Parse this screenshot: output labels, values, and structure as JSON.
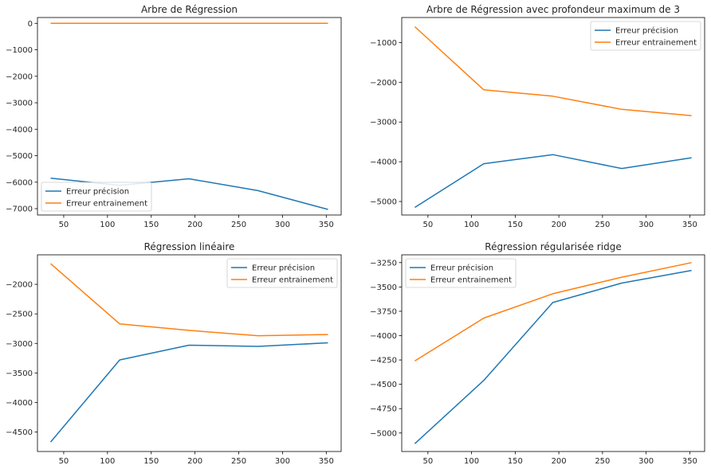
{
  "colors": {
    "precision": "#1f77b4",
    "train": "#ff7f0e"
  },
  "chart_data": [
    {
      "type": "line",
      "title": "Arbre de Régression",
      "x": [
        35,
        114,
        193,
        272,
        352
      ],
      "series": [
        {
          "name": "Erreur précision",
          "values": [
            -5850,
            -6120,
            -5870,
            -6320,
            -7030
          ]
        },
        {
          "name": "Erreur entrainement",
          "values": [
            0,
            0,
            0,
            0,
            0
          ]
        }
      ],
      "xlim": [
        20,
        367
      ],
      "ylim": [
        -7240,
        220
      ],
      "xticks": [
        50,
        100,
        150,
        200,
        250,
        300,
        350
      ],
      "yticks": [
        0,
        -1000,
        -2000,
        -3000,
        -4000,
        -5000,
        -6000,
        -7000
      ],
      "legend": "lower-left",
      "grid": false
    },
    {
      "type": "line",
      "title": "Arbre de Régression avec profondeur maximum de 3",
      "x": [
        35,
        114,
        193,
        272,
        352
      ],
      "series": [
        {
          "name": "Erreur précision",
          "values": [
            -5150,
            -4050,
            -3820,
            -4170,
            -3900
          ]
        },
        {
          "name": "Erreur entrainement",
          "values": [
            -600,
            -2190,
            -2350,
            -2680,
            -2840
          ]
        }
      ],
      "xlim": [
        20,
        367
      ],
      "ylim": [
        -5340,
        -370
      ],
      "xticks": [
        50,
        100,
        150,
        200,
        250,
        300,
        350
      ],
      "yticks": [
        -1000,
        -2000,
        -3000,
        -4000,
        -5000
      ],
      "legend": "upper-right",
      "grid": false
    },
    {
      "type": "line",
      "title": "Régression linéaire",
      "x": [
        35,
        114,
        193,
        272,
        352
      ],
      "series": [
        {
          "name": "Erreur précision",
          "values": [
            -4670,
            -3280,
            -3030,
            -3050,
            -2990
          ]
        },
        {
          "name": "Erreur entrainement",
          "values": [
            -1650,
            -2670,
            -2780,
            -2870,
            -2850
          ]
        }
      ],
      "xlim": [
        20,
        367
      ],
      "ylim": [
        -4830,
        -1500
      ],
      "xticks": [
        50,
        100,
        150,
        200,
        250,
        300,
        350
      ],
      "yticks": [
        -2000,
        -2500,
        -3000,
        -3500,
        -4000,
        -4500
      ],
      "legend": "upper-right",
      "grid": false
    },
    {
      "type": "line",
      "title": "Régression régularisée ridge",
      "x": [
        35,
        114,
        193,
        272,
        352
      ],
      "series": [
        {
          "name": "Erreur précision",
          "values": [
            -5110,
            -4460,
            -3660,
            -3460,
            -3330
          ]
        },
        {
          "name": "Erreur entrainement",
          "values": [
            -4260,
            -3820,
            -3570,
            -3400,
            -3250
          ]
        }
      ],
      "xlim": [
        20,
        367
      ],
      "ylim": [
        -5190,
        -3170
      ],
      "xticks": [
        50,
        100,
        150,
        200,
        250,
        300,
        350
      ],
      "yticks": [
        -3250,
        -3500,
        -3750,
        -4000,
        -4250,
        -4500,
        -4750,
        -5000
      ],
      "legend": "upper-left",
      "grid": false
    }
  ]
}
